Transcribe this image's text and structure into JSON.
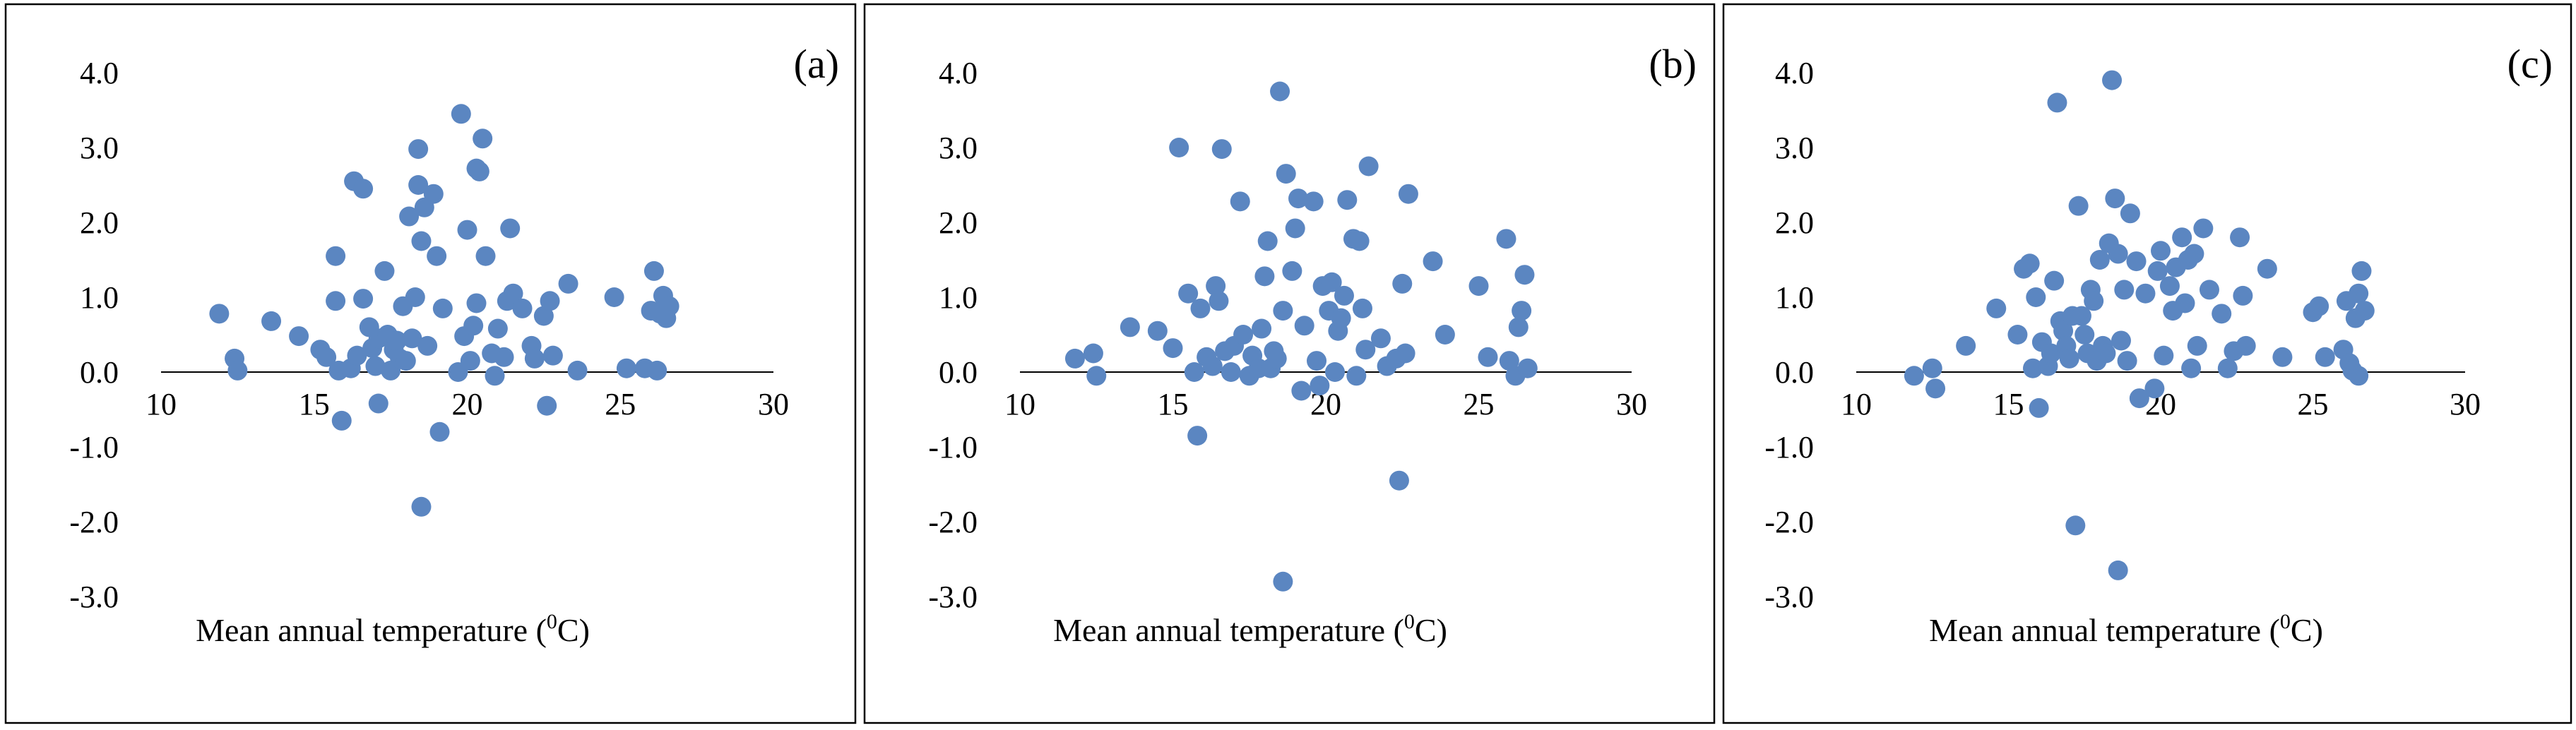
{
  "figure": {
    "point_color": "#5b86c1"
  },
  "chart_data": [
    {
      "type": "scatter",
      "panel_label": "(a)",
      "title": "",
      "xlabel": "Mean annual temperature",
      "xlabel_sup": "0",
      "xlabel_unit": "C",
      "ylabel": "",
      "xlim": [
        10,
        30
      ],
      "ylim": [
        -3.0,
        4.0
      ],
      "x_ticks": [
        "10",
        "15",
        "20",
        "25",
        "30"
      ],
      "y_ticks": [
        "4.0",
        "3.0",
        "2.0",
        "1.0",
        "0.0",
        "-1.0",
        "-2.0",
        "-3.0"
      ],
      "points": [
        [
          11.9,
          0.78
        ],
        [
          12.4,
          0.18
        ],
        [
          12.5,
          0.02
        ],
        [
          13.6,
          0.68
        ],
        [
          14.5,
          0.48
        ],
        [
          15.2,
          0.3
        ],
        [
          15.4,
          0.2
        ],
        [
          15.7,
          1.55
        ],
        [
          15.7,
          0.95
        ],
        [
          15.8,
          0.02
        ],
        [
          15.9,
          -0.65
        ],
        [
          16.2,
          0.05
        ],
        [
          16.3,
          2.55
        ],
        [
          16.4,
          0.22
        ],
        [
          16.6,
          2.45
        ],
        [
          16.6,
          0.98
        ],
        [
          16.8,
          0.6
        ],
        [
          16.9,
          0.32
        ],
        [
          17.0,
          0.08
        ],
        [
          17.1,
          0.45
        ],
        [
          17.1,
          -0.42
        ],
        [
          17.3,
          1.35
        ],
        [
          17.4,
          0.5
        ],
        [
          17.5,
          0.02
        ],
        [
          17.6,
          0.3
        ],
        [
          17.7,
          0.42
        ],
        [
          17.8,
          0.18
        ],
        [
          17.9,
          0.88
        ],
        [
          18.0,
          0.15
        ],
        [
          18.1,
          2.08
        ],
        [
          18.2,
          0.45
        ],
        [
          18.3,
          1.0
        ],
        [
          18.4,
          2.98
        ],
        [
          18.4,
          2.5
        ],
        [
          18.5,
          1.75
        ],
        [
          18.6,
          2.2
        ],
        [
          18.7,
          0.35
        ],
        [
          18.5,
          -1.8
        ],
        [
          18.9,
          2.38
        ],
        [
          19.0,
          1.55
        ],
        [
          19.1,
          -0.8
        ],
        [
          19.2,
          0.85
        ],
        [
          19.7,
          0.0
        ],
        [
          19.8,
          3.45
        ],
        [
          19.9,
          0.48
        ],
        [
          20.0,
          1.9
        ],
        [
          20.1,
          0.15
        ],
        [
          20.2,
          0.62
        ],
        [
          20.3,
          0.92
        ],
        [
          20.3,
          2.72
        ],
        [
          20.4,
          2.68
        ],
        [
          20.5,
          3.12
        ],
        [
          20.6,
          1.55
        ],
        [
          20.8,
          0.25
        ],
        [
          20.9,
          -0.05
        ],
        [
          21.0,
          0.58
        ],
        [
          21.2,
          0.2
        ],
        [
          21.3,
          0.95
        ],
        [
          21.4,
          1.92
        ],
        [
          21.5,
          1.05
        ],
        [
          21.8,
          0.85
        ],
        [
          22.1,
          0.35
        ],
        [
          22.2,
          0.18
        ],
        [
          22.5,
          0.75
        ],
        [
          22.6,
          -0.45
        ],
        [
          22.7,
          0.95
        ],
        [
          22.8,
          0.22
        ],
        [
          23.3,
          1.18
        ],
        [
          23.6,
          0.02
        ],
        [
          24.8,
          1.0
        ],
        [
          25.2,
          0.05
        ],
        [
          25.8,
          0.05
        ],
        [
          26.0,
          0.82
        ],
        [
          26.1,
          1.35
        ],
        [
          26.2,
          0.02
        ],
        [
          26.3,
          0.78
        ],
        [
          26.4,
          1.02
        ],
        [
          26.5,
          0.72
        ],
        [
          26.6,
          0.88
        ]
      ]
    },
    {
      "type": "scatter",
      "panel_label": "(b)",
      "title": "",
      "xlabel": "Mean annual temperature",
      "xlabel_sup": "0",
      "xlabel_unit": "C",
      "ylabel": "",
      "xlim": [
        10,
        30
      ],
      "ylim": [
        -3.0,
        4.0
      ],
      "x_ticks": [
        "10",
        "15",
        "20",
        "25",
        "30"
      ],
      "y_ticks": [
        "4.0",
        "3.0",
        "2.0",
        "1.0",
        "0.0",
        "-1.0",
        "-2.0",
        "-3.0"
      ],
      "points": [
        [
          11.8,
          0.18
        ],
        [
          12.4,
          0.25
        ],
        [
          12.5,
          -0.05
        ],
        [
          13.6,
          0.6
        ],
        [
          14.5,
          0.55
        ],
        [
          15.0,
          0.32
        ],
        [
          15.2,
          3.0
        ],
        [
          15.5,
          1.05
        ],
        [
          15.7,
          0.0
        ],
        [
          15.8,
          -0.85
        ],
        [
          15.9,
          0.85
        ],
        [
          16.1,
          0.2
        ],
        [
          16.3,
          0.08
        ],
        [
          16.4,
          1.15
        ],
        [
          16.5,
          0.95
        ],
        [
          16.6,
          2.98
        ],
        [
          16.7,
          0.28
        ],
        [
          16.9,
          0.0
        ],
        [
          17.0,
          0.35
        ],
        [
          17.2,
          2.28
        ],
        [
          17.3,
          0.5
        ],
        [
          17.5,
          -0.05
        ],
        [
          17.6,
          0.22
        ],
        [
          17.8,
          0.05
        ],
        [
          17.9,
          0.58
        ],
        [
          18.0,
          1.28
        ],
        [
          18.1,
          1.75
        ],
        [
          18.2,
          0.05
        ],
        [
          18.3,
          0.28
        ],
        [
          18.4,
          0.18
        ],
        [
          18.5,
          3.75
        ],
        [
          18.6,
          0.82
        ],
        [
          18.6,
          -2.8
        ],
        [
          18.7,
          2.65
        ],
        [
          18.9,
          1.35
        ],
        [
          19.0,
          1.92
        ],
        [
          19.1,
          2.32
        ],
        [
          19.2,
          -0.25
        ],
        [
          19.3,
          0.62
        ],
        [
          19.6,
          2.28
        ],
        [
          19.7,
          0.15
        ],
        [
          19.8,
          -0.18
        ],
        [
          19.9,
          1.15
        ],
        [
          20.1,
          0.82
        ],
        [
          20.2,
          1.2
        ],
        [
          20.3,
          0.0
        ],
        [
          20.4,
          0.55
        ],
        [
          20.5,
          0.72
        ],
        [
          20.6,
          1.02
        ],
        [
          20.7,
          2.3
        ],
        [
          20.9,
          1.78
        ],
        [
          21.0,
          -0.05
        ],
        [
          21.1,
          1.75
        ],
        [
          21.2,
          0.85
        ],
        [
          21.3,
          0.3
        ],
        [
          21.4,
          2.75
        ],
        [
          21.8,
          0.45
        ],
        [
          22.0,
          0.08
        ],
        [
          22.3,
          0.18
        ],
        [
          22.4,
          -1.45
        ],
        [
          22.5,
          1.18
        ],
        [
          22.6,
          0.25
        ],
        [
          22.7,
          2.38
        ],
        [
          23.5,
          1.48
        ],
        [
          23.9,
          0.5
        ],
        [
          25.0,
          1.15
        ],
        [
          25.3,
          0.2
        ],
        [
          25.9,
          1.78
        ],
        [
          26.0,
          0.15
        ],
        [
          26.2,
          -0.05
        ],
        [
          26.3,
          0.6
        ],
        [
          26.4,
          0.82
        ],
        [
          26.5,
          1.3
        ],
        [
          26.6,
          0.05
        ]
      ]
    },
    {
      "type": "scatter",
      "panel_label": "(c)",
      "title": "",
      "xlabel": "Mean annual temperature",
      "xlabel_sup": "0",
      "xlabel_unit": "C",
      "ylabel": "",
      "xlim": [
        10,
        30
      ],
      "ylim": [
        -3.0,
        4.0
      ],
      "x_ticks": [
        "10",
        "15",
        "20",
        "25",
        "30"
      ],
      "y_ticks": [
        "4.0",
        "3.0",
        "2.0",
        "1.0",
        "0.0",
        "-1.0",
        "-2.0",
        "-3.0"
      ],
      "points": [
        [
          11.9,
          -0.05
        ],
        [
          12.5,
          0.05
        ],
        [
          12.6,
          -0.22
        ],
        [
          13.6,
          0.35
        ],
        [
          14.6,
          0.85
        ],
        [
          15.3,
          0.5
        ],
        [
          15.5,
          1.38
        ],
        [
          15.7,
          1.45
        ],
        [
          15.8,
          0.05
        ],
        [
          15.9,
          1.0
        ],
        [
          16.0,
          -0.48
        ],
        [
          16.1,
          0.4
        ],
        [
          16.3,
          0.08
        ],
        [
          16.4,
          0.25
        ],
        [
          16.5,
          1.22
        ],
        [
          16.6,
          3.6
        ],
        [
          16.7,
          0.68
        ],
        [
          16.8,
          0.55
        ],
        [
          16.9,
          0.35
        ],
        [
          17.0,
          0.18
        ],
        [
          17.1,
          0.75
        ],
        [
          17.2,
          -2.05
        ],
        [
          17.3,
          2.22
        ],
        [
          17.4,
          0.75
        ],
        [
          17.5,
          0.5
        ],
        [
          17.6,
          0.25
        ],
        [
          17.7,
          1.1
        ],
        [
          17.8,
          0.95
        ],
        [
          17.9,
          0.15
        ],
        [
          18.0,
          1.5
        ],
        [
          18.1,
          0.35
        ],
        [
          18.2,
          0.25
        ],
        [
          18.3,
          1.72
        ],
        [
          18.4,
          3.9
        ],
        [
          18.5,
          2.32
        ],
        [
          18.6,
          1.58
        ],
        [
          18.6,
          -2.65
        ],
        [
          18.7,
          0.42
        ],
        [
          18.8,
          1.1
        ],
        [
          18.9,
          0.15
        ],
        [
          19.0,
          2.12
        ],
        [
          19.2,
          1.48
        ],
        [
          19.3,
          -0.35
        ],
        [
          19.5,
          1.05
        ],
        [
          19.8,
          -0.22
        ],
        [
          19.9,
          1.35
        ],
        [
          20.0,
          1.62
        ],
        [
          20.1,
          0.22
        ],
        [
          20.3,
          1.15
        ],
        [
          20.4,
          0.82
        ],
        [
          20.5,
          1.4
        ],
        [
          20.7,
          1.8
        ],
        [
          20.8,
          0.92
        ],
        [
          20.9,
          1.5
        ],
        [
          21.0,
          0.05
        ],
        [
          21.1,
          1.58
        ],
        [
          21.2,
          0.35
        ],
        [
          21.4,
          1.92
        ],
        [
          21.6,
          1.1
        ],
        [
          22.0,
          0.78
        ],
        [
          22.2,
          0.05
        ],
        [
          22.4,
          0.28
        ],
        [
          22.6,
          1.8
        ],
        [
          22.7,
          1.02
        ],
        [
          22.8,
          0.35
        ],
        [
          23.5,
          1.38
        ],
        [
          24.0,
          0.2
        ],
        [
          25.0,
          0.8
        ],
        [
          25.2,
          0.88
        ],
        [
          25.4,
          0.2
        ],
        [
          26.0,
          0.3
        ],
        [
          26.1,
          0.95
        ],
        [
          26.2,
          0.12
        ],
        [
          26.3,
          0.02
        ],
        [
          26.4,
          0.72
        ],
        [
          26.5,
          1.05
        ],
        [
          26.6,
          1.35
        ],
        [
          26.7,
          0.82
        ],
        [
          26.5,
          -0.05
        ]
      ]
    }
  ]
}
